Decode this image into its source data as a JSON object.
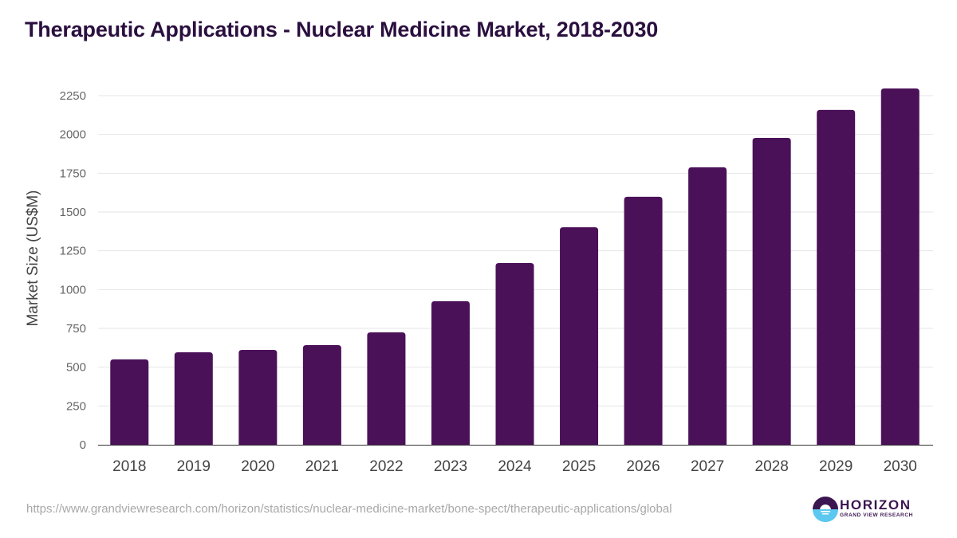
{
  "header": {
    "title": "Therapeutic Applications - Nuclear Medicine Market, 2018-2030"
  },
  "footer": {
    "source_url": "https://www.grandviewresearch.com/horizon/statistics/nuclear-medicine-market/bone-spect/therapeutic-applications/global",
    "logo_name": "HORIZON",
    "logo_sub": "GRAND VIEW RESEARCH"
  },
  "colors": {
    "bar": "#4b1158",
    "title": "#2a0f3f",
    "logo_dark": "#3b1650",
    "logo_light": "#5cc8f0"
  },
  "chart_data": {
    "type": "bar",
    "title": "Therapeutic Applications - Nuclear Medicine Market, 2018-2030",
    "xlabel": "",
    "ylabel": "Market Size (US$M)",
    "categories": [
      "2018",
      "2019",
      "2020",
      "2021",
      "2022",
      "2023",
      "2024",
      "2025",
      "2026",
      "2027",
      "2028",
      "2029",
      "2030"
    ],
    "values": [
      550,
      596,
      611,
      642,
      724,
      925,
      1171,
      1402,
      1598,
      1788,
      1978,
      2158,
      2296
    ],
    "ylim": [
      0,
      2250
    ],
    "yticks": [
      0,
      250,
      500,
      750,
      1000,
      1250,
      1500,
      1750,
      2000,
      2250
    ],
    "grid": true,
    "legend": "none"
  }
}
